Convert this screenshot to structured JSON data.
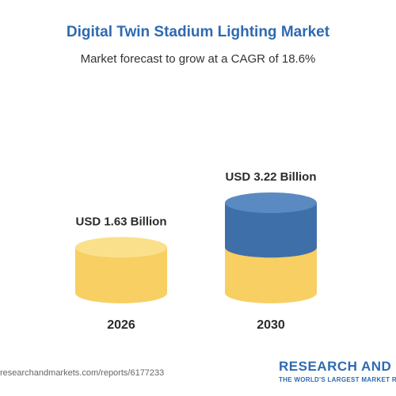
{
  "header": {
    "title": "Digital Twin Stadium Lighting Market",
    "subtitle": "Market forecast to grow at a CAGR of 18.6%"
  },
  "chart_data": {
    "type": "bar",
    "categories": [
      "2026",
      "2030"
    ],
    "values": [
      1.63,
      3.22
    ],
    "data_labels": [
      "USD 1.63 Billion",
      "USD 3.22 Billion"
    ],
    "title": "Digital Twin Stadium Lighting Market",
    "subtitle": "Market forecast to grow at a CAGR of 18.6%",
    "unit": "USD Billion",
    "grid": false,
    "colors": {
      "base": "#f7cf62",
      "base_top": "#fbe08c",
      "growth": "#3f6fa8",
      "growth_top": "#5b8ac2"
    }
  },
  "footer": {
    "url": "researchandmarkets.com/reports/6177233",
    "brand": "RESEARCH AND MARKETS",
    "tagline": "THE WORLD'S LARGEST MARKET RESEARCH STORE"
  }
}
